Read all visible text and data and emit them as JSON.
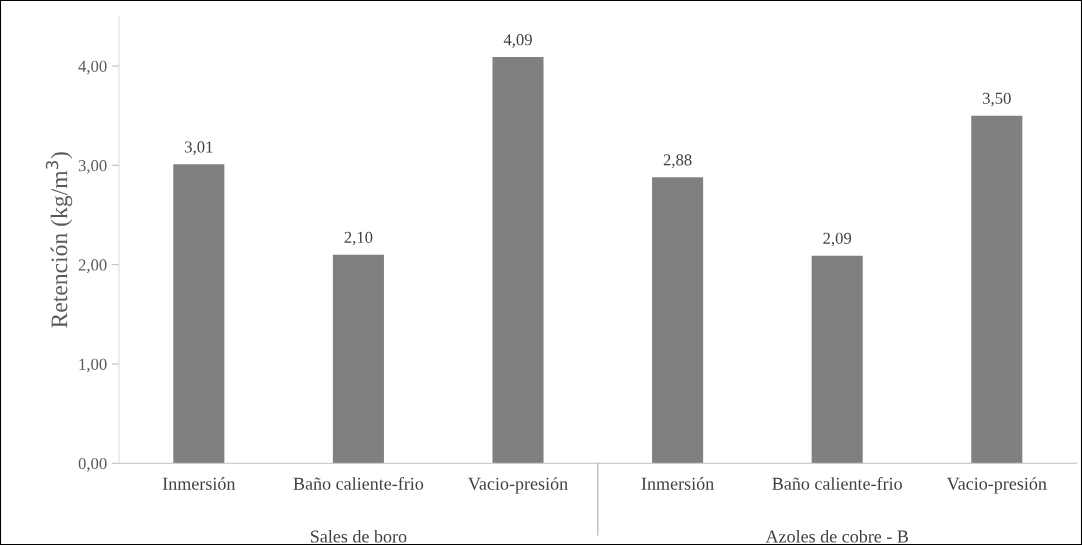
{
  "chart_data": {
    "type": "bar",
    "ylabel": "Retención (kg/m$^{3}$)",
    "categories": [
      "Inmersión",
      "Baño caliente-frio",
      "Vacio-presión",
      "Inmersión",
      "Baño caliente-frio",
      "Vacio-presión"
    ],
    "values": [
      3.01,
      2.1,
      4.09,
      2.88,
      2.09,
      3.5
    ],
    "value_labels": [
      "3,01",
      "2,10",
      "4,09",
      "2,88",
      "2,09",
      "3,50"
    ],
    "color": "#808080",
    "ylim": [
      0,
      4.5
    ],
    "yticks": [
      {
        "value": 0,
        "label": "0,00"
      },
      {
        "value": 1,
        "label": "1,00"
      },
      {
        "value": 2,
        "label": "2,00"
      },
      {
        "value": 3,
        "label": "3,00"
      },
      {
        "value": 4,
        "label": "4,00"
      }
    ],
    "annotations": [
      "Sales de boro",
      "Azoles de cobre - B"
    ],
    "grid": false,
    "legend": false
  }
}
